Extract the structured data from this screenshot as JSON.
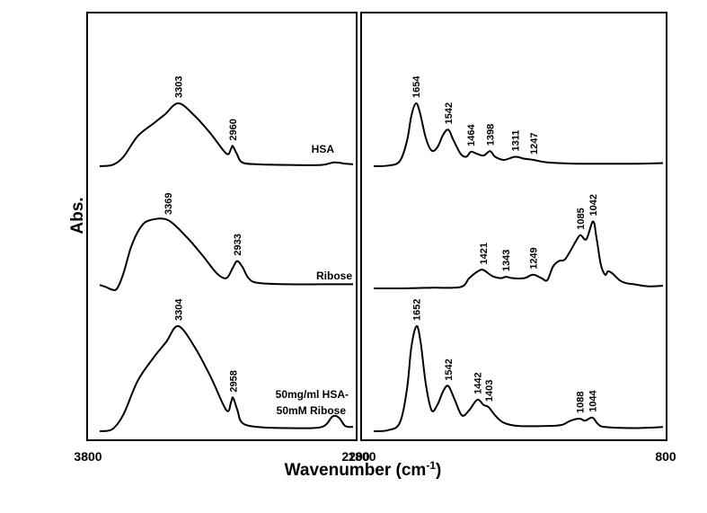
{
  "chart_data": {
    "type": "line",
    "ylabel": "Abs.",
    "xlabel": "Wavenumber (cm",
    "xlabel_sup": "-1",
    "xlabel_end": ")",
    "panels": [
      {
        "xlim": [
          3800,
          2200
        ],
        "tick_labels": [
          "3800",
          "2200"
        ],
        "series": [
          {
            "name": "HSA",
            "points": [
              [
                3800,
                0.0
              ],
              [
                3720,
                0.02
              ],
              [
                3650,
                0.15
              ],
              [
                3560,
                0.48
              ],
              [
                3460,
                0.68
              ],
              [
                3390,
                0.82
              ],
              [
                3303,
                1.0
              ],
              [
                3200,
                0.8
              ],
              [
                3100,
                0.52
              ],
              [
                3000,
                0.2
              ],
              [
                2970,
                0.28
              ],
              [
                2960,
                0.32
              ],
              [
                2935,
                0.2
              ],
              [
                2900,
                0.06
              ],
              [
                2800,
                0.03
              ],
              [
                2600,
                0.02
              ],
              [
                2400,
                0.02
              ],
              [
                2320,
                0.06
              ],
              [
                2250,
                0.04
              ],
              [
                2200,
                0.03
              ]
            ],
            "peaks": [
              "3303",
              "2960"
            ]
          },
          {
            "name": "Ribose",
            "points": [
              [
                3800,
                0.05
              ],
              [
                3760,
                0.02
              ],
              [
                3720,
                -0.02
              ],
              [
                3690,
                0.0
              ],
              [
                3650,
                0.22
              ],
              [
                3600,
                0.62
              ],
              [
                3540,
                0.9
              ],
              [
                3480,
                1.0
              ],
              [
                3369,
                1.0
              ],
              [
                3250,
                0.75
              ],
              [
                3150,
                0.48
              ],
              [
                3060,
                0.22
              ],
              [
                3000,
                0.15
              ],
              [
                2960,
                0.3
              ],
              [
                2933,
                0.4
              ],
              [
                2900,
                0.32
              ],
              [
                2860,
                0.15
              ],
              [
                2800,
                0.08
              ],
              [
                2600,
                0.06
              ],
              [
                2400,
                0.06
              ],
              [
                2200,
                0.06
              ]
            ],
            "peaks": [
              "3369",
              "2933"
            ]
          },
          {
            "name": "50mg/ml HSA-50mM Ribose",
            "points": [
              [
                3800,
                0.0
              ],
              [
                3720,
                0.02
              ],
              [
                3650,
                0.16
              ],
              [
                3560,
                0.48
              ],
              [
                3460,
                0.7
              ],
              [
                3380,
                0.85
              ],
              [
                3304,
                1.0
              ],
              [
                3200,
                0.8
              ],
              [
                3100,
                0.52
              ],
              [
                3000,
                0.2
              ],
              [
                2970,
                0.28
              ],
              [
                2958,
                0.32
              ],
              [
                2930,
                0.2
              ],
              [
                2900,
                0.08
              ],
              [
                2800,
                0.04
              ],
              [
                2600,
                0.03
              ],
              [
                2400,
                0.04
              ],
              [
                2330,
                0.14
              ],
              [
                2290,
                0.13
              ],
              [
                2250,
                0.05
              ],
              [
                2200,
                0.04
              ]
            ],
            "peaks": [
              "3304",
              "2958"
            ]
          }
        ]
      },
      {
        "xlim": [
          1800,
          800
        ],
        "tick_labels": [
          "1800",
          "800"
        ],
        "series": [
          {
            "name": "HSA",
            "points": [
              [
                1800,
                0.0
              ],
              [
                1750,
                0.01
              ],
              [
                1710,
                0.08
              ],
              [
                1685,
                0.4
              ],
              [
                1670,
                0.8
              ],
              [
                1654,
                1.0
              ],
              [
                1640,
                0.85
              ],
              [
                1620,
                0.45
              ],
              [
                1600,
                0.25
              ],
              [
                1580,
                0.3
              ],
              [
                1560,
                0.5
              ],
              [
                1542,
                0.58
              ],
              [
                1525,
                0.42
              ],
              [
                1500,
                0.2
              ],
              [
                1480,
                0.15
              ],
              [
                1464,
                0.23
              ],
              [
                1445,
                0.2
              ],
              [
                1420,
                0.17
              ],
              [
                1398,
                0.24
              ],
              [
                1380,
                0.15
              ],
              [
                1350,
                0.1
              ],
              [
                1311,
                0.15
              ],
              [
                1280,
                0.12
              ],
              [
                1247,
                0.1
              ],
              [
                1200,
                0.06
              ],
              [
                1100,
                0.04
              ],
              [
                1000,
                0.04
              ],
              [
                900,
                0.04
              ],
              [
                800,
                0.05
              ]
            ],
            "peaks": [
              "1654",
              "1542",
              "1464",
              "1398",
              "1311",
              "1247"
            ]
          },
          {
            "name": "Ribose",
            "points": [
              [
                1800,
                0.0
              ],
              [
                1700,
                0.0
              ],
              [
                1600,
                0.01
              ],
              [
                1500,
                0.02
              ],
              [
                1470,
                0.15
              ],
              [
                1440,
                0.25
              ],
              [
                1421,
                0.27
              ],
              [
                1390,
                0.18
              ],
              [
                1360,
                0.15
              ],
              [
                1343,
                0.17
              ],
              [
                1320,
                0.15
              ],
              [
                1280,
                0.15
              ],
              [
                1249,
                0.2
              ],
              [
                1220,
                0.15
              ],
              [
                1200,
                0.12
              ],
              [
                1180,
                0.32
              ],
              [
                1160,
                0.4
              ],
              [
                1140,
                0.42
              ],
              [
                1120,
                0.55
              ],
              [
                1100,
                0.7
              ],
              [
                1085,
                0.78
              ],
              [
                1065,
                0.72
              ],
              [
                1042,
                0.98
              ],
              [
                1030,
                0.75
              ],
              [
                1015,
                0.35
              ],
              [
                1000,
                0.2
              ],
              [
                990,
                0.25
              ],
              [
                975,
                0.22
              ],
              [
                950,
                0.12
              ],
              [
                930,
                0.08
              ],
              [
                900,
                0.06
              ],
              [
                850,
                0.03
              ],
              [
                800,
                0.04
              ]
            ],
            "peaks": [
              "1421",
              "1343",
              "1249",
              "1085",
              "1042"
            ]
          },
          {
            "name": "50mg/ml HSA-50mM Ribose",
            "points": [
              [
                1800,
                0.0
              ],
              [
                1750,
                0.01
              ],
              [
                1710,
                0.08
              ],
              [
                1685,
                0.4
              ],
              [
                1670,
                0.8
              ],
              [
                1652,
                1.0
              ],
              [
                1638,
                0.85
              ],
              [
                1620,
                0.45
              ],
              [
                1600,
                0.2
              ],
              [
                1580,
                0.25
              ],
              [
                1560,
                0.38
              ],
              [
                1542,
                0.43
              ],
              [
                1520,
                0.3
              ],
              [
                1495,
                0.15
              ],
              [
                1470,
                0.2
              ],
              [
                1442,
                0.3
              ],
              [
                1420,
                0.25
              ],
              [
                1403,
                0.23
              ],
              [
                1380,
                0.15
              ],
              [
                1350,
                0.08
              ],
              [
                1300,
                0.05
              ],
              [
                1200,
                0.05
              ],
              [
                1150,
                0.06
              ],
              [
                1120,
                0.1
              ],
              [
                1088,
                0.12
              ],
              [
                1070,
                0.1
              ],
              [
                1044,
                0.13
              ],
              [
                1025,
                0.07
              ],
              [
                1000,
                0.04
              ],
              [
                900,
                0.03
              ],
              [
                800,
                0.04
              ]
            ],
            "peaks": [
              "1652",
              "1542",
              "1442",
              "1403",
              "1088",
              "1044"
            ]
          }
        ]
      }
    ]
  }
}
